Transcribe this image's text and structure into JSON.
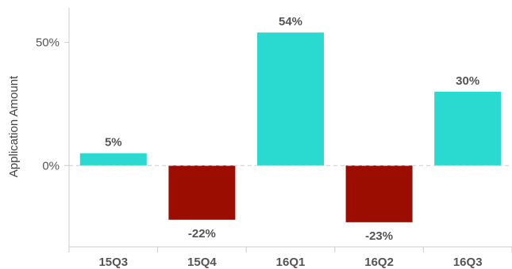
{
  "chart_data": {
    "type": "bar",
    "title": "",
    "xlabel": "",
    "ylabel": "Application Amount",
    "categories": [
      "15Q3",
      "15Q4",
      "16Q1",
      "16Q2",
      "16Q3"
    ],
    "values": [
      5,
      -22,
      54,
      -23,
      30
    ],
    "data_labels": [
      "5%",
      "-22%",
      "54%",
      "-23%",
      "30%"
    ],
    "ylim": [
      -33,
      64
    ],
    "yticks": [
      0,
      50
    ],
    "ytick_labels": [
      "0%",
      "50%"
    ],
    "grid": false,
    "legend": "none",
    "colors": {
      "positive": "#2ad9cf",
      "negative": "#9a0d00",
      "zero_line": "#cccccc",
      "axis": "#cccccc",
      "text": "#555555"
    }
  }
}
